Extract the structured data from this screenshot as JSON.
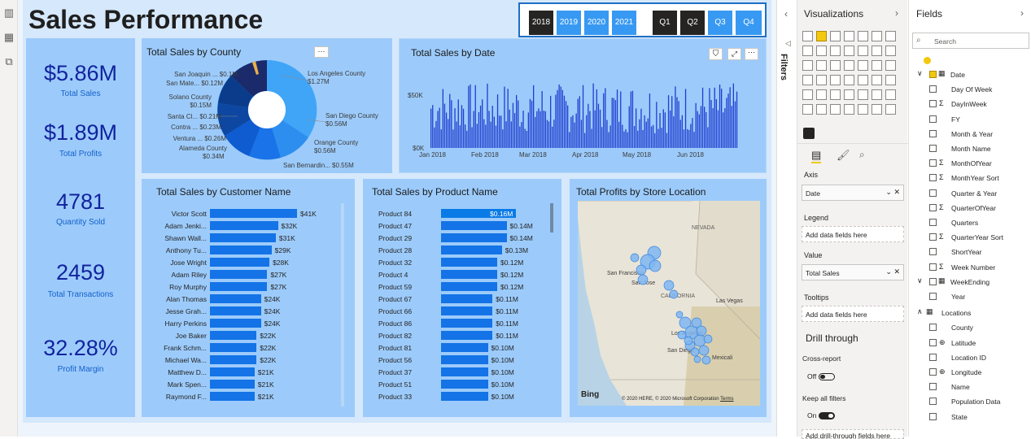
{
  "report": {
    "title": "Sales Performance"
  },
  "slicer": {
    "years": [
      "2018",
      "2019",
      "2020",
      "2021"
    ],
    "quarters": [
      "Q1",
      "Q2",
      "Q3",
      "Q4"
    ],
    "selected_year": "2018",
    "selected_quarters": [
      "Q1",
      "Q2"
    ]
  },
  "kpis": [
    {
      "value": "$5.86M",
      "label": "Total Sales"
    },
    {
      "value": "$1.89M",
      "label": "Total Profits"
    },
    {
      "value": "4781",
      "label": "Quantity Sold"
    },
    {
      "value": "2459",
      "label": "Total Transactions"
    },
    {
      "value": "32.28%",
      "label": "Profit Margin"
    }
  ],
  "county": {
    "title": "Total Sales by County",
    "labels": [
      {
        "name": "San Joaquin ...",
        "value": "$0.1M"
      },
      {
        "name": "San Mate...",
        "value": "$0.12M"
      },
      {
        "name": "Solano County",
        "value": "$0.15M"
      },
      {
        "name": "Santa Cl...",
        "value": "$0.21M"
      },
      {
        "name": "Contra ...",
        "value": "$0.23M"
      },
      {
        "name": "Ventura ...",
        "value": "$0.26M"
      },
      {
        "name": "Alameda County",
        "value": "$0.34M"
      },
      {
        "name": "Los Angeles County",
        "value": "$1.27M"
      },
      {
        "name": "San Diego County",
        "value": "$0.56M"
      },
      {
        "name": "Orange County",
        "value": "$0.56M"
      },
      {
        "name": "San Bernardin...",
        "value": "$0.55M"
      }
    ]
  },
  "datechart": {
    "title": "Total Sales by Date",
    "yticks": [
      "$50K",
      "$0K"
    ],
    "xticks": [
      "Jan 2018",
      "Feb 2018",
      "Mar 2018",
      "Apr 2018",
      "May 2018",
      "Jun 2018"
    ]
  },
  "customers": {
    "title": "Total Sales by Customer Name",
    "rows": [
      {
        "name": "Victor Scott",
        "label": "$41K",
        "value": 41
      },
      {
        "name": "Adam Jenki...",
        "label": "$32K",
        "value": 32
      },
      {
        "name": "Shawn Wall...",
        "label": "$31K",
        "value": 31
      },
      {
        "name": "Anthony Tu...",
        "label": "$29K",
        "value": 29
      },
      {
        "name": "Jose Wright",
        "label": "$28K",
        "value": 28
      },
      {
        "name": "Adam Riley",
        "label": "$27K",
        "value": 27
      },
      {
        "name": "Roy Murphy",
        "label": "$27K",
        "value": 27
      },
      {
        "name": "Alan Thomas",
        "label": "$24K",
        "value": 24
      },
      {
        "name": "Jesse Grah...",
        "label": "$24K",
        "value": 24
      },
      {
        "name": "Harry Perkins",
        "label": "$24K",
        "value": 24
      },
      {
        "name": "Joe Baker",
        "label": "$22K",
        "value": 22
      },
      {
        "name": "Frank Schm...",
        "label": "$22K",
        "value": 22
      },
      {
        "name": "Michael Wa...",
        "label": "$22K",
        "value": 22
      },
      {
        "name": "Matthew D...",
        "label": "$21K",
        "value": 21
      },
      {
        "name": "Mark Spen...",
        "label": "$21K",
        "value": 21
      },
      {
        "name": "Raymond F...",
        "label": "$21K",
        "value": 21
      }
    ]
  },
  "products": {
    "title": "Total Sales by Product Name",
    "rows": [
      {
        "name": "Product 84",
        "label": "$0.16M",
        "value": 0.16
      },
      {
        "name": "Product 47",
        "label": "$0.14M",
        "value": 0.14
      },
      {
        "name": "Product 29",
        "label": "$0.14M",
        "value": 0.14
      },
      {
        "name": "Product 28",
        "label": "$0.13M",
        "value": 0.13
      },
      {
        "name": "Product 32",
        "label": "$0.12M",
        "value": 0.12
      },
      {
        "name": "Product 4",
        "label": "$0.12M",
        "value": 0.12
      },
      {
        "name": "Product 59",
        "label": "$0.12M",
        "value": 0.12
      },
      {
        "name": "Product 67",
        "label": "$0.11M",
        "value": 0.11
      },
      {
        "name": "Product 66",
        "label": "$0.11M",
        "value": 0.11
      },
      {
        "name": "Product 86",
        "label": "$0.11M",
        "value": 0.11
      },
      {
        "name": "Product 82",
        "label": "$0.11M",
        "value": 0.11
      },
      {
        "name": "Product 81",
        "label": "$0.10M",
        "value": 0.1
      },
      {
        "name": "Product 56",
        "label": "$0.10M",
        "value": 0.1
      },
      {
        "name": "Product 37",
        "label": "$0.10M",
        "value": 0.1
      },
      {
        "name": "Product 51",
        "label": "$0.10M",
        "value": 0.1
      },
      {
        "name": "Product 33",
        "label": "$0.10M",
        "value": 0.1
      }
    ]
  },
  "map": {
    "title": "Total Profits by Store Location",
    "labels": [
      "NEVADA",
      "CALIFORNIA",
      "San Francisco",
      "San Jose",
      "Las Vegas",
      "Los Angeles",
      "San Diego",
      "Mexicali",
      "Bing"
    ],
    "copyright": "© 2020 HERE, © 2020 Microsoft Corporation",
    "terms": "Terms"
  },
  "filters": {
    "label": "Filters"
  },
  "viz": {
    "title": "Visualizations",
    "axis_label": "Axis",
    "axis_value": "Date",
    "legend_label": "Legend",
    "legend_placeholder": "Add data fields here",
    "value_label": "Value",
    "value_value": "Total Sales",
    "tooltips_label": "Tooltips",
    "tooltips_placeholder": "Add data fields here",
    "drill_title": "Drill through",
    "cross_report": "Cross-report",
    "cross_state": "Off",
    "keep_filters": "Keep all filters",
    "keep_state": "On",
    "drill_placeholder": "Add drill-through fields here"
  },
  "fields": {
    "title": "Fields",
    "search_placeholder": "Search",
    "items": [
      {
        "name": "Date",
        "type": "table",
        "checked": true
      },
      {
        "name": "Day Of Week"
      },
      {
        "name": "DayInWeek",
        "sigma": true
      },
      {
        "name": "FY"
      },
      {
        "name": "Month & Year"
      },
      {
        "name": "Month Name"
      },
      {
        "name": "MonthOfYear",
        "sigma": true
      },
      {
        "name": "MonthYear Sort",
        "sigma": true
      },
      {
        "name": "Quarter & Year"
      },
      {
        "name": "QuarterOfYear",
        "sigma": true
      },
      {
        "name": "Quarters"
      },
      {
        "name": "QuarterYear Sort",
        "sigma": true
      },
      {
        "name": "ShortYear"
      },
      {
        "name": "Week Number",
        "sigma": true
      },
      {
        "name": "WeekEnding",
        "type": "table"
      },
      {
        "name": "Year"
      },
      {
        "name": "Locations",
        "type": "group"
      },
      {
        "name": "County"
      },
      {
        "name": "Latitude",
        "globe": true
      },
      {
        "name": "Location ID"
      },
      {
        "name": "Longitude",
        "globe": true
      },
      {
        "name": "Name"
      },
      {
        "name": "Population Data"
      },
      {
        "name": "State"
      }
    ]
  }
}
